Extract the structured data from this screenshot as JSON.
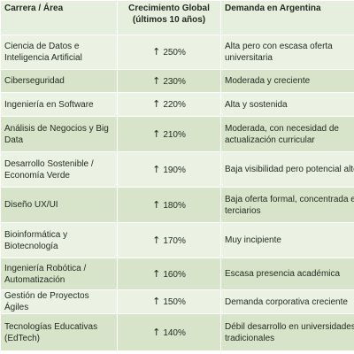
{
  "headers": {
    "career": "Carrera / Área",
    "growth": "Crecimiento Global (últimos 10 años)",
    "demand": "Demanda en Argentina"
  },
  "rows": [
    {
      "career": "Ciencia de Datos e Inteligencia Artificial",
      "growth": "250%",
      "demand": "Alta pero con escasa oferta universitaria"
    },
    {
      "career": "Ciberseguridad",
      "growth": "230%",
      "demand": "Moderada y creciente"
    },
    {
      "career": "Ingeniería en Software",
      "growth": "220%",
      "demand": "Alta y sostenida"
    },
    {
      "career": "Análisis de Negocios y Big Data",
      "growth": "210%",
      "demand": "Moderada, con necesidad de actualización curricular"
    },
    {
      "career": "Desarrollo Sostenible / Economía Verde",
      "growth": "190%",
      "demand": "Baja visibilidad pero potencial alto"
    },
    {
      "career": "Diseño UX/UI",
      "growth": "180%",
      "demand": "Baja oferta formal, concentrada en terciarios"
    },
    {
      "career": "Bioinformática y Biotecnología",
      "growth": "170%",
      "demand": "Muy incipiente"
    },
    {
      "career": "Ingeniería Robótica / Automatización",
      "growth": "160%",
      "demand": "Escasa presencia académica"
    },
    {
      "career": "Gestión de Proyectos Ágiles",
      "growth": "150%",
      "demand": "Demanda corporativa creciente"
    },
    {
      "career": "Tecnologías Educativas (EdTech)",
      "growth": "140%",
      "demand": "Débil desarrollo en universidades tradicionales"
    }
  ],
  "icons": {
    "growth_arrow": "up-arrow-icon"
  },
  "colors": {
    "header_bg": "#e6eedd",
    "row_light": "#ebf1e3",
    "row_dark": "#d7e4c9"
  }
}
